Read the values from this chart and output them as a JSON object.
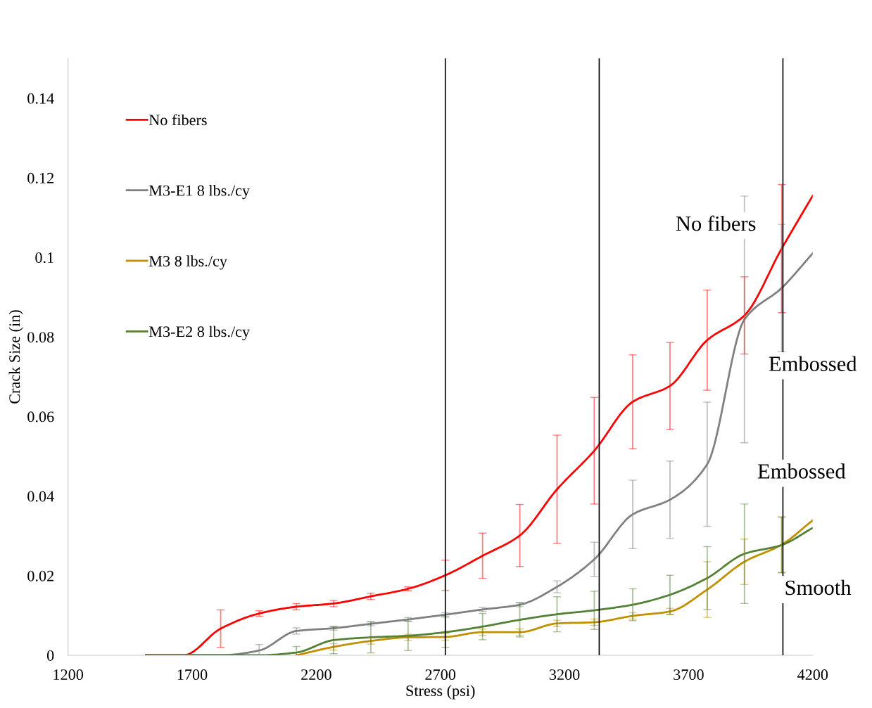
{
  "chart_data": {
    "type": "line",
    "xlabel": "Stress (psi)",
    "ylabel": "Crack Size (in)",
    "x": [
      1514,
      1665,
      1815,
      1970,
      2120,
      2270,
      2420,
      2570,
      2720,
      2870,
      3020,
      3170,
      3320,
      3475,
      3625,
      3775,
      3925,
      4075,
      4200
    ],
    "series": [
      {
        "name": "No fibers",
        "color": "#ff0000",
        "values": [
          0,
          0,
          0.0067,
          0.0105,
          0.0122,
          0.013,
          0.0148,
          0.0167,
          0.0201,
          0.025,
          0.0301,
          0.0417,
          0.0514,
          0.0637,
          0.0677,
          0.0792,
          0.0854,
          0.1022,
          0.1155
        ],
        "errors": [
          null,
          null,
          0.0047,
          0.0007,
          0.0008,
          0.0008,
          0.0008,
          0.0005,
          0.0038,
          0.0057,
          0.0078,
          0.0136,
          0.0134,
          0.0118,
          0.0109,
          0.0126,
          0.0097,
          0.0161,
          null
        ]
      },
      {
        "name": "M3-E1 8 lbs./cy",
        "color": "#808080",
        "values": [
          0,
          0,
          0,
          0.0012,
          0.0061,
          0.0068,
          0.0079,
          0.009,
          0.0102,
          0.0115,
          0.0127,
          0.0172,
          0.0241,
          0.0354,
          0.0391,
          0.048,
          0.0844,
          0.0923,
          0.101
        ],
        "errors": [
          null,
          null,
          null,
          0.0015,
          0.0008,
          0.0005,
          0.0005,
          0.0005,
          0.0005,
          0.0005,
          0.0005,
          0.0015,
          0.0043,
          0.0086,
          0.0097,
          0.0156,
          0.031,
          0.016,
          null
        ]
      },
      {
        "name": "M3 8 lbs./cy",
        "color": "#c09000",
        "values": [
          null,
          null,
          null,
          null,
          0,
          0.0021,
          0.0036,
          0.0045,
          0.0046,
          0.0058,
          0.0058,
          0.008,
          0.0083,
          0.0099,
          0.011,
          0.0165,
          0.0235,
          0.0278,
          0.0339
        ],
        "errors": [
          null,
          null,
          null,
          null,
          null,
          0.0008,
          0.0008,
          0.0008,
          0.0008,
          0.0008,
          0.0008,
          0.0008,
          0.0008,
          0.0008,
          0.0008,
          0.007,
          0.0057,
          0.007,
          null
        ]
      },
      {
        "name": "M3-E2 8 lbs./cy",
        "color": "#538135",
        "values": [
          0,
          0,
          0,
          0,
          0.0007,
          0.0038,
          0.0045,
          0.0049,
          0.0058,
          0.0072,
          0.0089,
          0.0103,
          0.0113,
          0.0127,
          0.0152,
          0.0194,
          0.0255,
          0.0277,
          0.032
        ],
        "errors": [
          null,
          null,
          null,
          null,
          0.0015,
          0.0034,
          0.0039,
          0.0037,
          0.0038,
          0.0033,
          0.0043,
          0.0044,
          0.0048,
          0.004,
          0.0049,
          0.0079,
          0.0125,
          0.007,
          null
        ]
      }
    ],
    "xlim": [
      1200,
      4200
    ],
    "xticks": [
      1200,
      1700,
      2200,
      2700,
      3200,
      3700,
      4200
    ],
    "ylim": [
      0,
      0.15
    ],
    "yticks": [
      0,
      0.02,
      0.04,
      0.06,
      0.08,
      0.1,
      0.12,
      0.14
    ],
    "ref_lines": [
      {
        "axis": "x",
        "value": 2720,
        "color": "#000000"
      },
      {
        "axis": "x",
        "value": 3340,
        "color": "#000000"
      },
      {
        "axis": "x",
        "value": 4080,
        "color": "#000000"
      }
    ],
    "annotations": [
      "No fibers",
      "Embossed",
      "Embossed",
      {
        "text": "Smooth",
        "x": 4075,
        "y": 0.0278
      }
    ],
    "grid": false,
    "legend": "top left",
    "marker": "none",
    "line_style": "solid"
  }
}
